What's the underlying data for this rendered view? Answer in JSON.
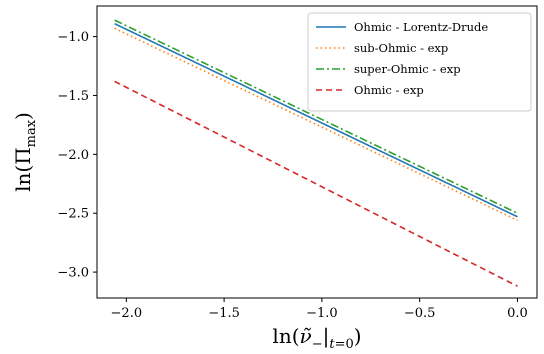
{
  "chart_data": {
    "type": "line",
    "xlabel": "ln(ν̃₋|t=0)",
    "ylabel": "ln(Πmax)",
    "xlim": [
      -2.15,
      0.1
    ],
    "ylim": [
      -3.22,
      -0.74
    ],
    "xticks": [
      -2.0,
      -1.5,
      -1.0,
      -0.5,
      0.0
    ],
    "xtick_labels": [
      "−2.0",
      "−1.5",
      "−1.0",
      "−0.5",
      "0.0"
    ],
    "yticks": [
      -3.0,
      -2.5,
      -2.0,
      -1.5,
      -1.0
    ],
    "ytick_labels": [
      "−3.0",
      "−2.5",
      "−2.0",
      "−1.5",
      "−1.0"
    ],
    "grid": false,
    "legend_position": "top-right",
    "series": [
      {
        "name": "Ohmic - Lorentz-Drude",
        "color": "#1f77b4",
        "style": "solid",
        "x": [
          -2.06,
          0.0
        ],
        "y": [
          -0.89,
          -2.53
        ]
      },
      {
        "name": "sub-Ohmic - exp",
        "color": "#ff7f0e",
        "style": "dotted",
        "x": [
          -2.06,
          0.0
        ],
        "y": [
          -0.93,
          -2.56
        ]
      },
      {
        "name": "super-Ohmic - exp",
        "color": "#2ca02c",
        "style": "dashdot",
        "x": [
          -2.06,
          0.0
        ],
        "y": [
          -0.86,
          -2.5
        ]
      },
      {
        "name": "Ohmic - exp",
        "color": "#d62728",
        "style": "dashed",
        "x": [
          -2.06,
          0.0
        ],
        "y": [
          -1.38,
          -3.12
        ]
      }
    ]
  }
}
